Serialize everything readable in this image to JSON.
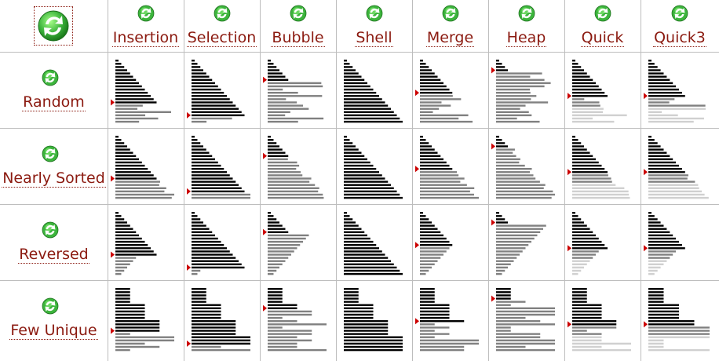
{
  "corner": {
    "icon": "refresh-icon",
    "action": "restart-all"
  },
  "algorithms": [
    "Insertion",
    "Selection",
    "Bubble",
    "Shell",
    "Merge",
    "Heap",
    "Quick",
    "Quick3"
  ],
  "conditions": [
    "Random",
    "Nearly Sorted",
    "Reversed",
    "Few Unique"
  ],
  "colors": {
    "label": "#8b1a10",
    "sorted_bar": "#000000",
    "unsorted_bar": "#808080",
    "inactive_bar": "#d0d0d0",
    "pointer": "#cc0000",
    "grid": "#bdbdbd",
    "icon_green": "#3cb43c"
  },
  "icons": {
    "header": "refresh-icon",
    "row": "refresh-icon"
  }
}
